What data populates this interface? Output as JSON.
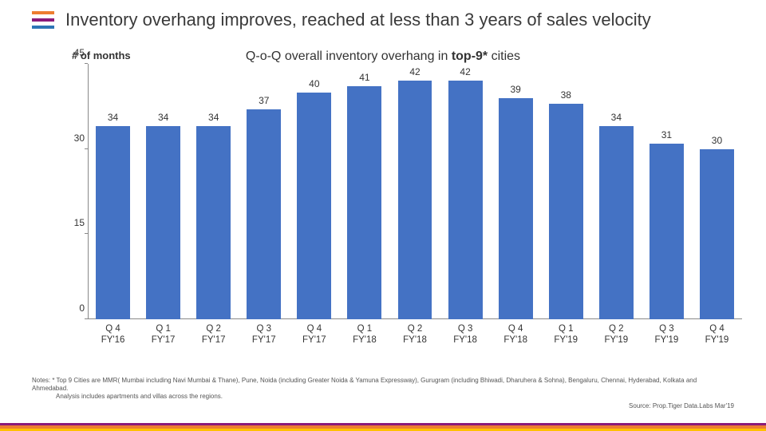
{
  "header": {
    "title": "Inventory overhang improves, reached at less than 3 years of sales velocity",
    "hamburger_colors": [
      "#ed7d31",
      "#8b1a7a",
      "#2e75b6"
    ]
  },
  "chart": {
    "type": "bar",
    "title_prefix": "Q-o-Q overall inventory overhang in ",
    "title_bold": "top-9*",
    "title_suffix": " cities",
    "y_axis_label": "# of months",
    "ylim": [
      0,
      45
    ],
    "ytick_step": 15,
    "yticks": [
      0,
      15,
      30,
      45
    ],
    "bar_color": "#4472c4",
    "background_color": "#ffffff",
    "categories": [
      "Q 4\nFY'16",
      "Q 1\nFY'17",
      "Q 2\nFY'17",
      "Q 3\nFY'17",
      "Q 4\nFY'17",
      "Q 1\nFY'18",
      "Q 2\nFY'18",
      "Q 3\nFY'18",
      "Q 4\nFY'18",
      "Q 1\nFY'19",
      "Q 2\nFY'19",
      "Q 3\nFY'19",
      "Q 4\nFY'19"
    ],
    "values": [
      34,
      34,
      34,
      37,
      40,
      41,
      42,
      42,
      39,
      38,
      34,
      31,
      30
    ],
    "value_fontsize": 12,
    "label_fontsize": 11.5
  },
  "notes": {
    "line1": "Notes: * Top 9 Cities are MMR( Mumbai including Navi Mumbai & Thane), Pune, Noida (including Greater Noida & Yamuna Expressway), Gurugram (including Bhiwadi, Dharuhera & Sohna), Bengaluru, Chennai, Hyderabad, Kolkata and Ahmedabad.",
    "line2": "Analysis includes apartments and villas across the regions.",
    "source": "Source: Prop.Tiger Data.Labs Mar'19"
  },
  "footer_colors": [
    "#8b1a7a",
    "#ed7d31",
    "#ffc000"
  ]
}
